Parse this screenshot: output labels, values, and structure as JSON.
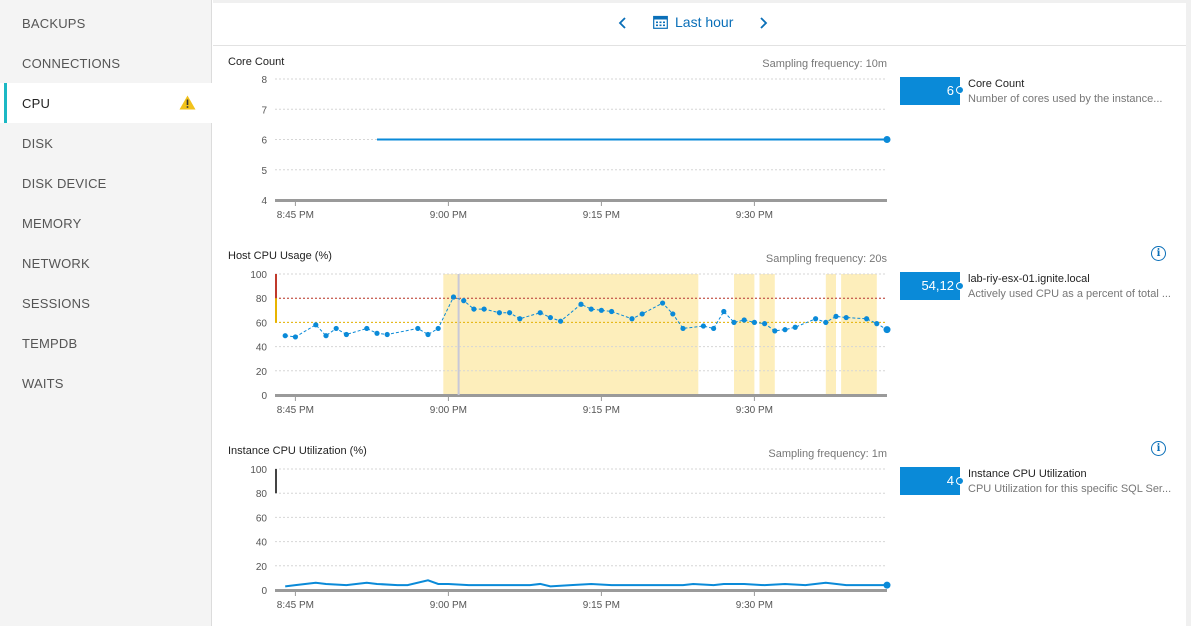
{
  "sidebar": {
    "items": [
      {
        "label": "BACKUPS"
      },
      {
        "label": "CONNECTIONS"
      },
      {
        "label": "CPU",
        "active": true,
        "warning": true
      },
      {
        "label": "DISK"
      },
      {
        "label": "DISK DEVICE"
      },
      {
        "label": "MEMORY"
      },
      {
        "label": "NETWORK"
      },
      {
        "label": "SESSIONS"
      },
      {
        "label": "TEMPDB"
      },
      {
        "label": "WAITS"
      }
    ]
  },
  "toolbar": {
    "prev_icon": "chevron-left-icon",
    "next_icon": "chevron-right-icon",
    "calendar_icon": "calendar-icon",
    "time_range": "Last hour"
  },
  "colors": {
    "accent": "#0a8ad8",
    "link": "#0a6fb8",
    "active_marker": "#1cb8c4",
    "highlight": "#fdeebb",
    "threshold_critical": "#c0392b",
    "threshold_warning": "#e8b400",
    "warning_icon": "#f2c21b"
  },
  "charts": [
    {
      "title": "Core Count",
      "sampling": "Sampling frequency: 10m",
      "stat_value": "6",
      "stat_name": "Core Count",
      "stat_desc": "Number of cores used by the instance...",
      "info_icon": false
    },
    {
      "title": "Host CPU Usage (%)",
      "sampling": "Sampling frequency: 20s",
      "stat_value": "54,12",
      "stat_name": "lab-riy-esx-01.ignite.local",
      "stat_desc": "Actively used CPU as a percent of total ...",
      "info_icon": true
    },
    {
      "title": "Instance CPU Utilization (%)",
      "sampling": "Sampling frequency: 1m",
      "stat_value": "4",
      "stat_name": "Instance CPU Utilization",
      "stat_desc": "CPU Utilization for this specific SQL Ser...",
      "info_icon": true
    }
  ],
  "chart_data": [
    {
      "type": "line",
      "title": "Core Count",
      "x_ticks": [
        "8:45 PM",
        "9:00 PM",
        "9:15 PM",
        "9:30 PM"
      ],
      "y_ticks": [
        4,
        5,
        6,
        7,
        8
      ],
      "ylim": [
        4,
        8
      ],
      "xlim_minutes": [
        -2,
        58
      ],
      "grid": true,
      "series": [
        {
          "x_minutes": [
            8,
            58
          ],
          "values": [
            6,
            6
          ],
          "markers": "end"
        }
      ]
    },
    {
      "type": "line",
      "title": "Host CPU Usage (%)",
      "x_ticks": [
        "8:45 PM",
        "9:00 PM",
        "9:15 PM",
        "9:30 PM"
      ],
      "y_ticks": [
        0,
        20,
        40,
        60,
        80,
        100
      ],
      "ylim": [
        0,
        100
      ],
      "xlim_minutes": [
        -2,
        58
      ],
      "grid": true,
      "thresholds": [
        {
          "value": 80,
          "level": "critical"
        },
        {
          "value": 60,
          "level": "warning"
        }
      ],
      "highlight_ranges_minutes": [
        [
          14.5,
          39.5
        ],
        [
          43,
          45
        ],
        [
          45.5,
          47
        ],
        [
          52,
          53
        ],
        [
          53.5,
          57
        ]
      ],
      "cursor_minutes": 16,
      "series": [
        {
          "x_minutes": [
            -1,
            0,
            2,
            3,
            4,
            5,
            7,
            8,
            9,
            12,
            13,
            14,
            15.5,
            16.5,
            17.5,
            18.5,
            20,
            21,
            22,
            24,
            25,
            26,
            28,
            29,
            30,
            31,
            33,
            34,
            36,
            37,
            38,
            40,
            41,
            42,
            43,
            44,
            45,
            46,
            47,
            48,
            49,
            51,
            52,
            53,
            54,
            56,
            57,
            58
          ],
          "values": [
            49,
            48,
            58,
            49,
            55,
            50,
            55,
            51,
            50,
            55,
            50,
            55,
            81,
            78,
            71,
            71,
            68,
            68,
            63,
            68,
            64,
            61,
            75,
            71,
            70,
            69,
            63,
            67,
            76,
            67,
            55,
            57,
            55,
            69,
            60,
            62,
            60,
            59,
            53,
            54,
            56,
            63,
            60,
            65,
            64,
            63,
            59,
            54
          ],
          "markers": "all"
        }
      ]
    },
    {
      "type": "line",
      "title": "Instance CPU Utilization (%)",
      "x_ticks": [
        "8:45 PM",
        "9:00 PM",
        "9:15 PM",
        "9:30 PM"
      ],
      "y_ticks": [
        0,
        20,
        40,
        60,
        80,
        100
      ],
      "ylim": [
        0,
        100
      ],
      "xlim_minutes": [
        -2,
        58
      ],
      "grid": true,
      "threshold_markers": [
        {
          "value": 100,
          "level": "critical"
        },
        {
          "value": 80,
          "level": "warning"
        }
      ],
      "series": [
        {
          "x_minutes": [
            -1,
            0,
            2,
            3,
            5,
            7,
            8,
            10,
            11,
            13,
            14,
            15,
            17,
            20,
            23,
            24,
            25,
            27,
            29,
            31,
            34,
            36,
            38,
            39,
            41,
            42,
            44,
            46,
            48,
            50,
            52,
            54,
            56,
            58
          ],
          "values": [
            3,
            4,
            6,
            5,
            4,
            6,
            5,
            4,
            4,
            8,
            5,
            5,
            4,
            4,
            4,
            5,
            3,
            4,
            5,
            4,
            4,
            4,
            4,
            5,
            4,
            5,
            5,
            4,
            5,
            4,
            6,
            4,
            4,
            4
          ],
          "markers": "end"
        }
      ]
    }
  ]
}
